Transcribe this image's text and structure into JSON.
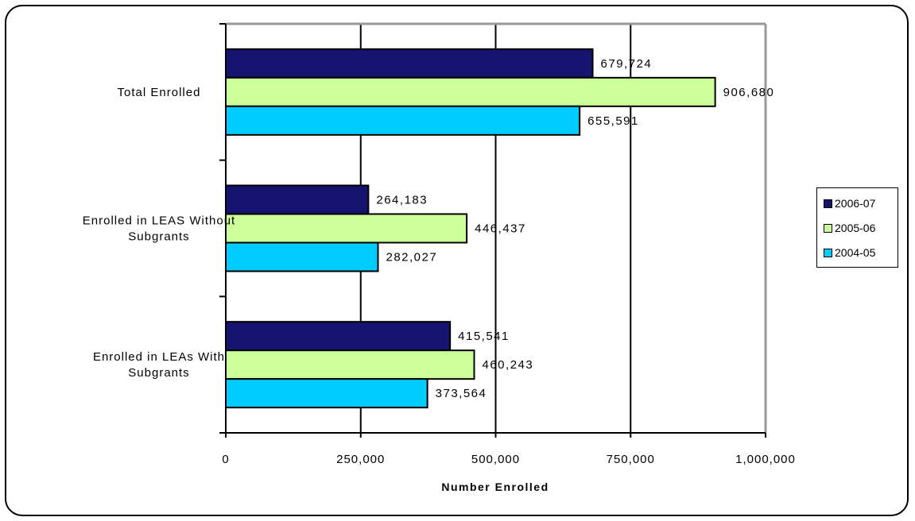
{
  "chart_data": {
    "type": "bar",
    "orientation": "horizontal",
    "categories": [
      "Total Enrolled",
      "Enrolled in LEAS Without Subgrants",
      "Enrolled in LEAs With Subgrants"
    ],
    "category_lines": [
      [
        "Total Enrolled"
      ],
      [
        "Enrolled in LEAS Without",
        "Subgrants"
      ],
      [
        "Enrolled in LEAs With",
        "Subgrants"
      ]
    ],
    "series": [
      {
        "name": "2006-07",
        "color": "#14146e",
        "values": [
          679724,
          264183,
          415541
        ],
        "labels": [
          "679,724",
          "264,183",
          "415,541"
        ]
      },
      {
        "name": "2005-06",
        "color": "#ccff99",
        "values": [
          906680,
          446437,
          460243
        ],
        "labels": [
          "906,680",
          "446,437",
          "460,243"
        ]
      },
      {
        "name": "2004-05",
        "color": "#00ccff",
        "values": [
          655591,
          282027,
          373564
        ],
        "labels": [
          "655,591",
          "282,027",
          "373,564"
        ]
      }
    ],
    "xlabel": "Number Enrolled",
    "xlim": [
      0,
      1000000
    ],
    "xticks": [
      0,
      250000,
      500000,
      750000,
      1000000
    ],
    "xtick_labels": [
      "0",
      "250,000",
      "500,000",
      "750,000",
      "1,000,000"
    ],
    "grid": true,
    "legend_position": "right"
  }
}
